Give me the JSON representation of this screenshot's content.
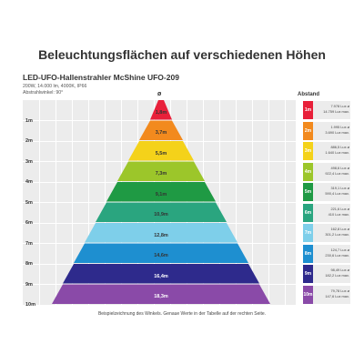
{
  "title": "Beleuchtungsflächen auf verschiedenen Höhen",
  "product": {
    "name": "LED-UFO-Hallenstrahler McShine UFO-209",
    "specs": "200W, 14.000 lm, 4000K, IP66",
    "angle": "Abstrahlwinkel: 90°"
  },
  "headers": {
    "diameter": "ø",
    "distance": "Abstand"
  },
  "heights": [
    "1m",
    "2m",
    "3m",
    "4m",
    "5m",
    "6m",
    "7m",
    "8m",
    "9m",
    "10m"
  ],
  "rows": [
    {
      "chip": "1m",
      "diameter": "1,8m",
      "color": "#e8203a",
      "lux_avg": "7.978 Lux ø",
      "lux_max": "14.759 Lux max."
    },
    {
      "chip": "2m",
      "diameter": "3,7m",
      "color": "#f28a1e",
      "lux_avg": "1.995 Lux ø",
      "lux_max": "3.690 Lux max."
    },
    {
      "chip": "3m",
      "diameter": "5,5m",
      "color": "#f4d21a",
      "lux_avg": "886,5 Lux ø",
      "lux_max": "1.640 Lux max."
    },
    {
      "chip": "4m",
      "diameter": "7,3m",
      "color": "#9cc62a",
      "lux_avg": "498,6 Lux ø",
      "lux_max": "922,4 Lux max."
    },
    {
      "chip": "5m",
      "diameter": "9,1m",
      "color": "#1f9a44",
      "lux_avg": "319,1 Lux ø",
      "lux_max": "590,4 Lux max."
    },
    {
      "chip": "6m",
      "diameter": "10,9m",
      "color": "#2aa57f",
      "lux_avg": "221,6 Lux ø",
      "lux_max": "410 Lux max."
    },
    {
      "chip": "7m",
      "diameter": "12,8m",
      "color": "#7ecfea",
      "lux_avg": "162,8 Lux ø",
      "lux_max": "301,2 Lux max."
    },
    {
      "chip": "8m",
      "diameter": "14,6m",
      "color": "#1e8fd0",
      "lux_avg": "124,7 Lux ø",
      "lux_max": "230,6 Lux max."
    },
    {
      "chip": "9m",
      "diameter": "16,4m",
      "color": "#2e2a8c",
      "lux_avg": "98,49 Lux ø",
      "lux_max": "182,2 Lux max."
    },
    {
      "chip": "10m",
      "diameter": "18,3m",
      "color": "#8a4aa8",
      "lux_avg": "79,78 Lux ø",
      "lux_max": "147,6 Lux max."
    }
  ],
  "caption": "Beispielzeichnung des Winkels. Genaue Werte in der Tabelle auf der rechten Seite."
}
